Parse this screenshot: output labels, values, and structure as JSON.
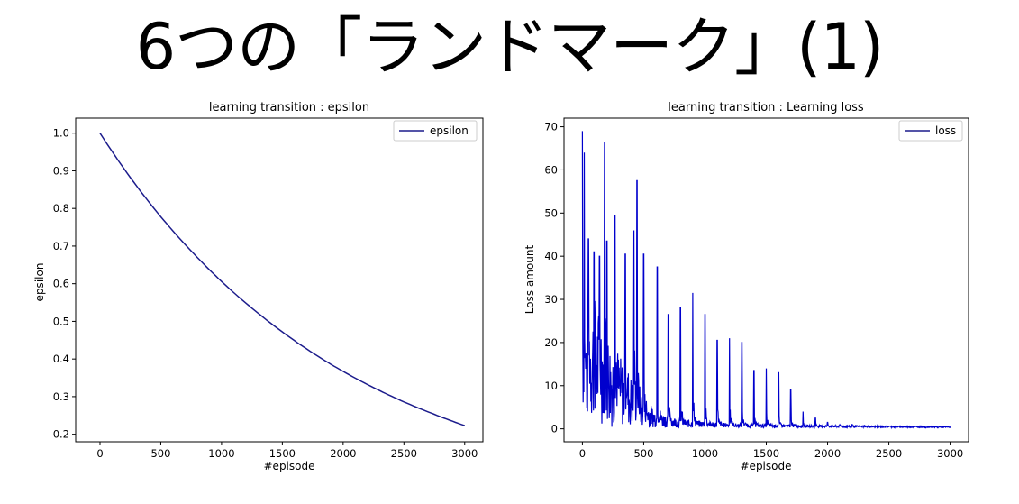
{
  "slide": {
    "title": "6つの「ランドマーク」(1)"
  },
  "colors": {
    "series": "#0000cd",
    "epsilon_line": "#1c1c8c",
    "axis": "#000000"
  },
  "chart_data": [
    {
      "type": "line",
      "title": "learning transition : epsilon",
      "xlabel": "#episode",
      "ylabel": "epsilon",
      "xlim": [
        -200,
        3150
      ],
      "ylim": [
        0.18,
        1.04
      ],
      "xticks": [
        0,
        500,
        1000,
        1500,
        2000,
        2500,
        3000
      ],
      "xtick_labels": [
        "0",
        "500",
        "1000",
        "1500",
        "2000",
        "2500",
        "3000"
      ],
      "yticks": [
        0.2,
        0.3,
        0.4,
        0.5,
        0.6,
        0.7,
        0.8,
        0.9,
        1.0
      ],
      "ytick_labels": [
        "0.2",
        "0.3",
        "0.4",
        "0.5",
        "0.6",
        "0.7",
        "0.8",
        "0.9",
        "1.0"
      ],
      "grid": false,
      "legend": {
        "position": "top-right",
        "entries": [
          "epsilon"
        ]
      },
      "series": [
        {
          "name": "epsilon",
          "x": [
            0,
            250,
            500,
            750,
            1000,
            1250,
            1500,
            1750,
            2000,
            2250,
            2500,
            2750,
            3000
          ],
          "y": [
            1.0,
            0.882,
            0.778,
            0.687,
            0.606,
            0.535,
            0.472,
            0.416,
            0.367,
            0.324,
            0.286,
            0.253,
            0.223
          ]
        }
      ]
    },
    {
      "type": "line",
      "title": "learning transition : Learning loss",
      "xlabel": "#episode",
      "ylabel": "Loss amount",
      "xlim": [
        -150,
        3150
      ],
      "ylim": [
        -3,
        72
      ],
      "xticks": [
        0,
        500,
        1000,
        1500,
        2000,
        2500,
        3000
      ],
      "xtick_labels": [
        "0",
        "500",
        "1000",
        "1500",
        "2000",
        "2500",
        "3000"
      ],
      "yticks": [
        0,
        10,
        20,
        30,
        40,
        50,
        60,
        70
      ],
      "ytick_labels": [
        "0",
        "10",
        "20",
        "30",
        "40",
        "50",
        "60",
        "70"
      ],
      "grid": false,
      "legend": {
        "position": "top-right",
        "entries": [
          "loss"
        ]
      },
      "series": [
        {
          "name": "loss",
          "spikes": [
            {
              "x": 0,
              "y": 69
            },
            {
              "x": 15,
              "y": 64
            },
            {
              "x": 50,
              "y": 44
            },
            {
              "x": 95,
              "y": 41
            },
            {
              "x": 140,
              "y": 40
            },
            {
              "x": 180,
              "y": 66.5
            },
            {
              "x": 200,
              "y": 43.5
            },
            {
              "x": 265,
              "y": 49.5
            },
            {
              "x": 350,
              "y": 40.5
            },
            {
              "x": 420,
              "y": 46
            },
            {
              "x": 445,
              "y": 57.5
            },
            {
              "x": 500,
              "y": 40.5
            },
            {
              "x": 610,
              "y": 37.5
            },
            {
              "x": 700,
              "y": 26.5
            },
            {
              "x": 800,
              "y": 28
            },
            {
              "x": 900,
              "y": 31.5
            },
            {
              "x": 1000,
              "y": 26.5
            },
            {
              "x": 1100,
              "y": 20.5
            },
            {
              "x": 1200,
              "y": 21
            },
            {
              "x": 1300,
              "y": 20
            },
            {
              "x": 1400,
              "y": 13.5
            },
            {
              "x": 1500,
              "y": 14
            },
            {
              "x": 1600,
              "y": 13
            },
            {
              "x": 1700,
              "y": 9
            },
            {
              "x": 1800,
              "y": 4
            },
            {
              "x": 1900,
              "y": 2.5
            },
            {
              "x": 2000,
              "y": 1.5
            },
            {
              "x": 2100,
              "y": 1
            },
            {
              "x": 2200,
              "y": 1
            },
            {
              "x": 2300,
              "y": 0.8
            },
            {
              "x": 2400,
              "y": 0.6
            },
            {
              "x": 2500,
              "y": 0.5
            },
            {
              "x": 2600,
              "y": 0.4
            },
            {
              "x": 2700,
              "y": 0.3
            },
            {
              "x": 2800,
              "y": 0.2
            },
            {
              "x": 2900,
              "y": 0.2
            },
            {
              "x": 3000,
              "y": 0.2
            }
          ],
          "noise_envelope": [
            {
              "x": 0,
              "y": 22
            },
            {
              "x": 100,
              "y": 30
            },
            {
              "x": 200,
              "y": 22
            },
            {
              "x": 300,
              "y": 17
            },
            {
              "x": 400,
              "y": 12
            },
            {
              "x": 500,
              "y": 7
            },
            {
              "x": 600,
              "y": 4
            },
            {
              "x": 800,
              "y": 2
            },
            {
              "x": 1200,
              "y": 1
            },
            {
              "x": 1800,
              "y": 0.6
            },
            {
              "x": 3000,
              "y": 0.2
            }
          ]
        }
      ]
    }
  ]
}
